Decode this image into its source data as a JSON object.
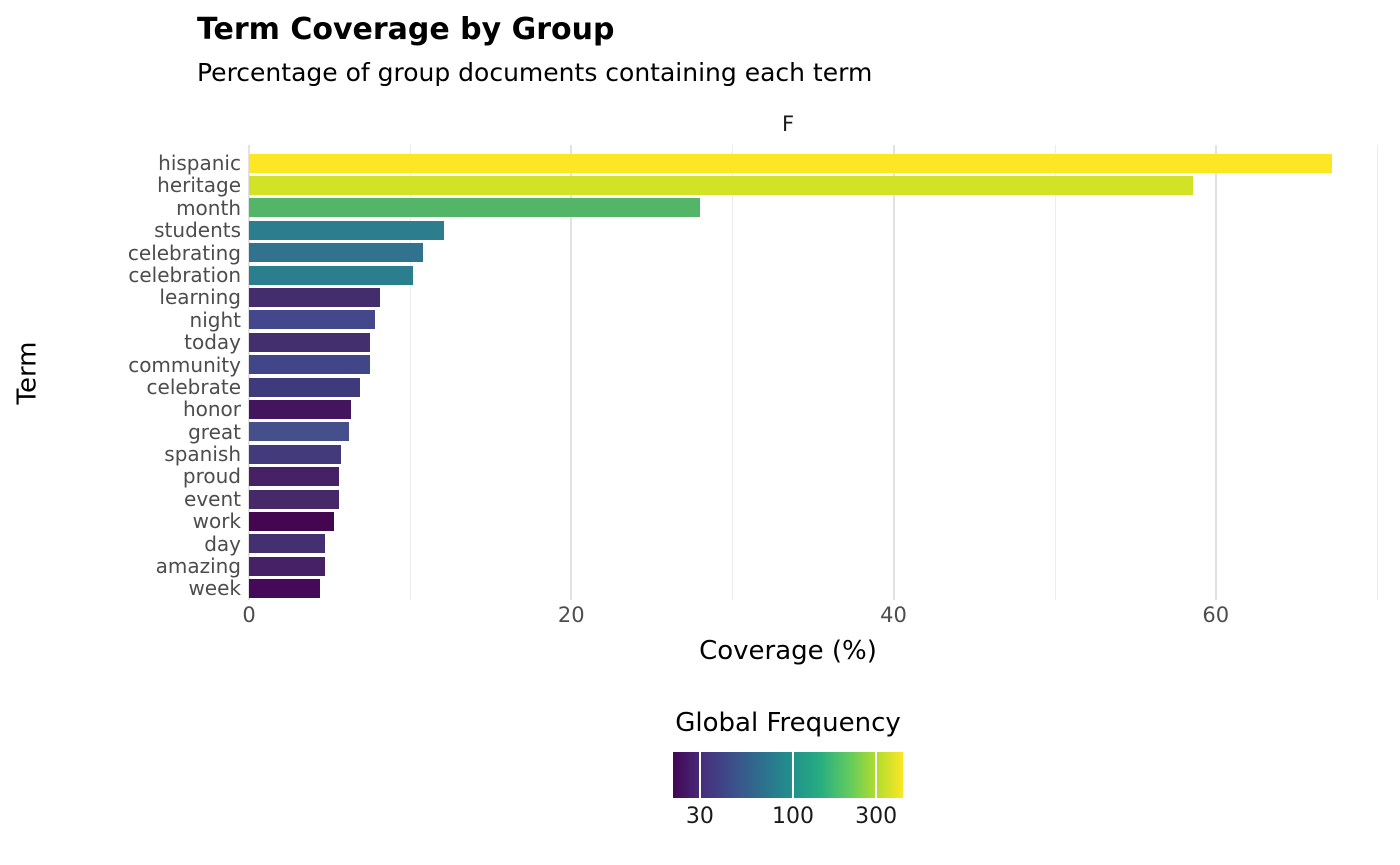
{
  "header": {
    "title": "Term Coverage by Group",
    "subtitle": "Percentage of group documents containing each term"
  },
  "facet": {
    "label": "F"
  },
  "axes": {
    "x_title": "Coverage (%)",
    "y_title": "Term"
  },
  "legend": {
    "title": "Global Frequency",
    "tick_labels": [
      "30",
      "100",
      "300"
    ],
    "tick_positions_pct": [
      11.7,
      52.2,
      88.3
    ],
    "scale_type": "log",
    "colormap": "viridis"
  },
  "chart_data": {
    "type": "bar",
    "orientation": "horizontal",
    "title": "Term Coverage by Group",
    "subtitle": "Percentage of group documents containing each term",
    "xlabel": "Coverage (%)",
    "ylabel": "Term",
    "xlim": [
      0,
      71
    ],
    "x_major_ticks": [
      0,
      20,
      40,
      60
    ],
    "x_minor_ticks": [
      10,
      30,
      50,
      70
    ],
    "grid": true,
    "legend_position": "bottom",
    "categories": [
      "hispanic",
      "heritage",
      "month",
      "students",
      "celebrating",
      "celebration",
      "learning",
      "night",
      "today",
      "community",
      "celebrate",
      "honor",
      "great",
      "spanish",
      "proud",
      "event",
      "work",
      "day",
      "amazing",
      "week"
    ],
    "values": [
      67.2,
      58.6,
      28.0,
      12.1,
      10.8,
      10.2,
      8.1,
      7.8,
      7.5,
      7.5,
      6.9,
      6.3,
      6.2,
      5.7,
      5.6,
      5.6,
      5.3,
      4.7,
      4.7,
      4.4
    ],
    "bar_colors": [
      "#fde725",
      "#d2e227",
      "#53b567",
      "#2c7d8e",
      "#31738e",
      "#2a7e8e",
      "#432d6d",
      "#44478b",
      "#432e6e",
      "#414689",
      "#3f3a7c",
      "#42155e",
      "#444f8b",
      "#423a7b",
      "#462264",
      "#472969",
      "#440551",
      "#443071",
      "#462165",
      "#45095a"
    ],
    "color_mapped_to": "Global Frequency",
    "color_scale_ticks": [
      30,
      100,
      300
    ]
  }
}
